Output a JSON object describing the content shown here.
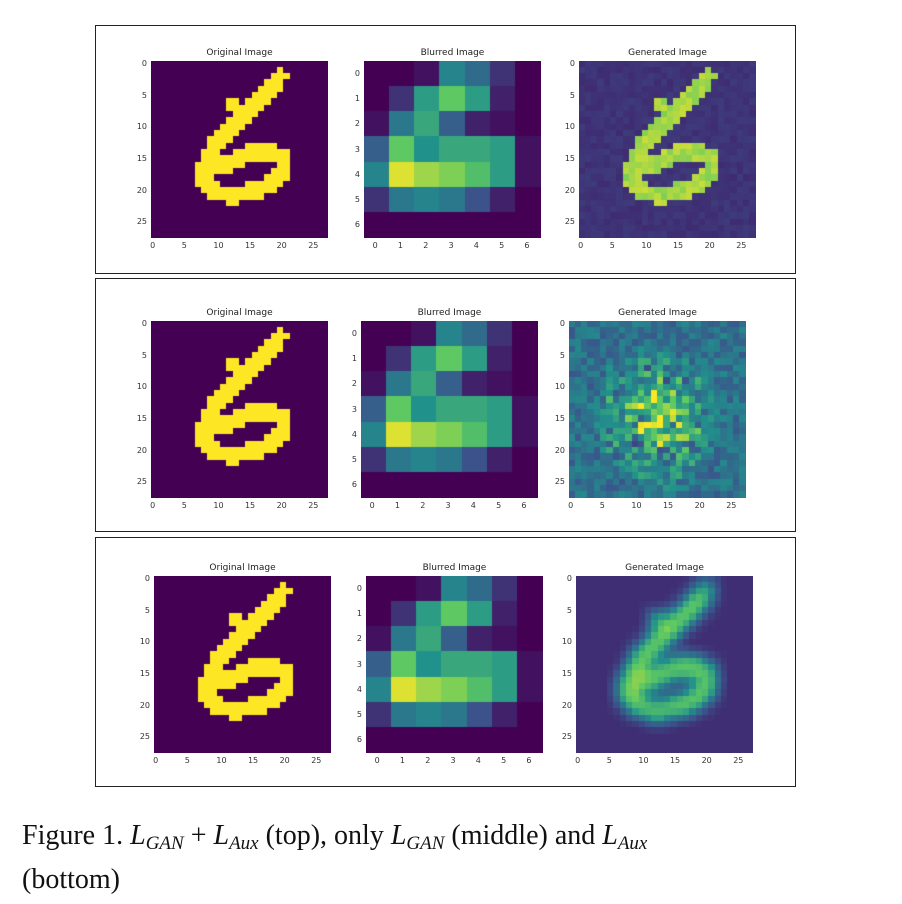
{
  "panel_titles": [
    "Original Image",
    "Blurred Image",
    "Generated Image"
  ],
  "rows": [
    {
      "key": "top",
      "generated_style": "good"
    },
    {
      "key": "middle",
      "generated_style": "noisy"
    },
    {
      "key": "bottom",
      "generated_style": "blurry"
    }
  ],
  "axes": {
    "original_ticks": [
      0,
      5,
      10,
      15,
      20,
      25
    ],
    "original_range": [
      0,
      27
    ],
    "blurred_ticks": [
      0,
      1,
      2,
      3,
      4,
      5,
      6
    ],
    "blurred_range": [
      0,
      6
    ]
  },
  "blurred_grid": [
    [
      0.0,
      0.0,
      0.05,
      0.45,
      0.35,
      0.15,
      0.0
    ],
    [
      0.0,
      0.15,
      0.55,
      0.75,
      0.55,
      0.1,
      0.0
    ],
    [
      0.05,
      0.4,
      0.6,
      0.3,
      0.1,
      0.05,
      0.0
    ],
    [
      0.3,
      0.75,
      0.5,
      0.6,
      0.6,
      0.55,
      0.05
    ],
    [
      0.45,
      0.95,
      0.85,
      0.8,
      0.7,
      0.55,
      0.05
    ],
    [
      0.15,
      0.4,
      0.45,
      0.4,
      0.25,
      0.1,
      0.0
    ],
    [
      0.0,
      0.0,
      0.0,
      0.0,
      0.0,
      0.0,
      0.0
    ]
  ],
  "caption": {
    "prefix": "Figure 1.",
    "sym_L": "L",
    "gan": "GAN",
    "aux": "Aux",
    "plus": "+",
    "top": "(top), only",
    "middle": "(middle) and",
    "bottom": "(bottom)"
  }
}
